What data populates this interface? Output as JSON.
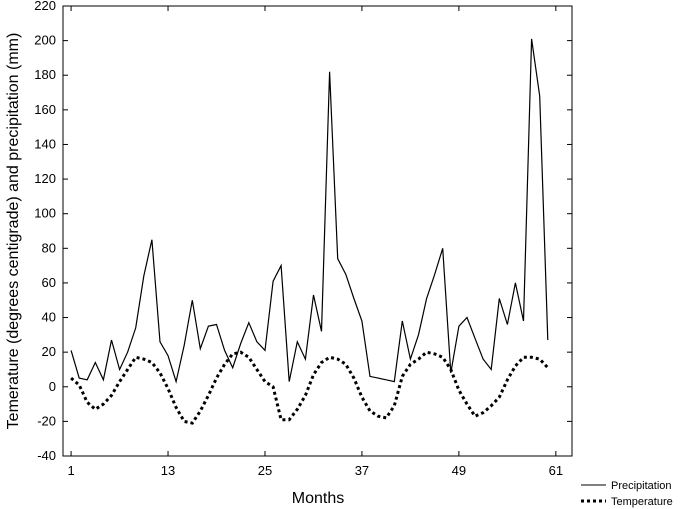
{
  "chart_data": {
    "type": "line",
    "title": "",
    "xlabel": "Months",
    "ylabel": "Temerature (degrees centigrade) and precipitation (mm)",
    "xlim": [
      0,
      63
    ],
    "ylim": [
      -40,
      220
    ],
    "xticks": [
      1,
      13,
      25,
      37,
      49,
      61
    ],
    "yticks": [
      -40,
      -20,
      0,
      20,
      40,
      60,
      80,
      100,
      120,
      140,
      160,
      180,
      200,
      220
    ],
    "grid": false,
    "legend_position": "bottom-right",
    "x": [
      1,
      2,
      3,
      4,
      5,
      6,
      7,
      8,
      9,
      10,
      11,
      12,
      13,
      14,
      15,
      16,
      17,
      18,
      19,
      20,
      21,
      22,
      23,
      24,
      25,
      26,
      27,
      28,
      29,
      30,
      31,
      32,
      33,
      34,
      35,
      36,
      37,
      38,
      39,
      40,
      41,
      42,
      43,
      44,
      45,
      46,
      47,
      48,
      49,
      50,
      51,
      52,
      53,
      54,
      55,
      56,
      57,
      58,
      59,
      60
    ],
    "series": [
      {
        "name": "Precipitation",
        "style": "solid",
        "values": [
          21,
          5,
          4,
          14,
          4,
          27,
          10,
          20,
          34,
          64,
          85,
          26,
          18,
          3,
          24,
          50,
          22,
          35,
          36,
          21,
          11,
          25,
          37,
          26,
          21,
          61,
          70,
          3,
          26,
          16,
          53,
          32,
          182,
          74,
          65,
          51,
          38,
          6,
          5,
          4,
          3,
          38,
          16,
          30,
          51,
          65,
          80,
          8,
          35,
          40,
          28,
          16,
          10,
          51,
          36,
          60,
          38,
          201,
          168,
          27
        ]
      },
      {
        "name": "Temperature",
        "style": "dotted",
        "values": [
          5,
          1,
          -9,
          -13,
          -10,
          -5,
          3,
          10,
          17,
          16,
          14,
          8,
          -1,
          -12,
          -20,
          -21,
          -14,
          -5,
          5,
          13,
          19,
          20,
          17,
          10,
          3,
          0,
          -19,
          -19,
          -13,
          -5,
          7,
          14,
          17,
          16,
          13,
          5,
          -6,
          -14,
          -17,
          -18,
          -11,
          6,
          13,
          16,
          20,
          19,
          17,
          10,
          -2,
          -10,
          -17,
          -15,
          -11,
          -6,
          4,
          12,
          17,
          17,
          16,
          11
        ]
      }
    ]
  }
}
